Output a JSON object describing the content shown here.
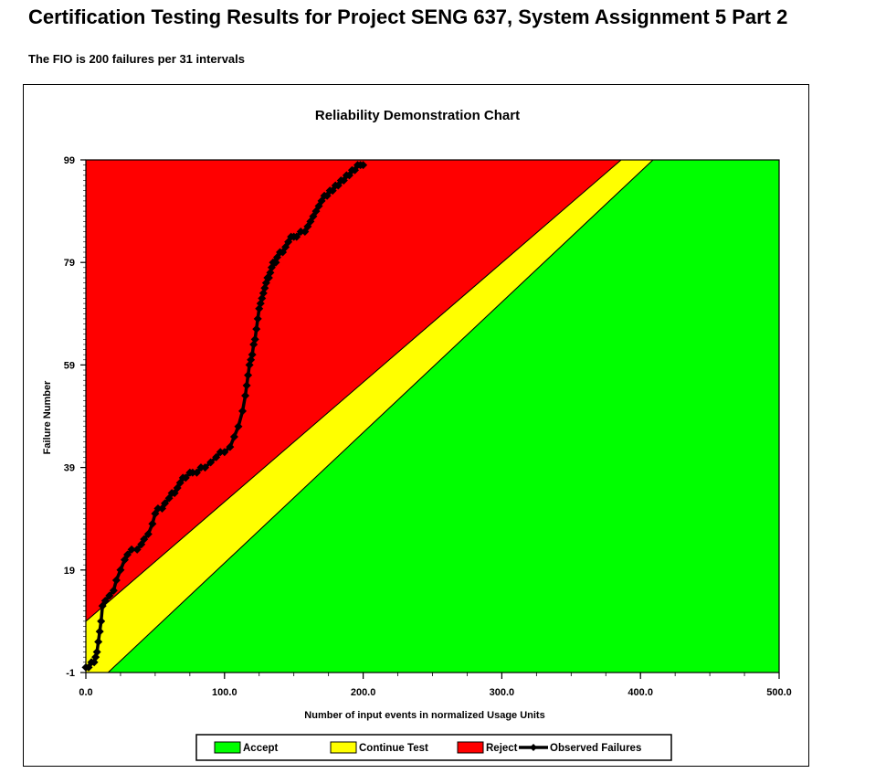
{
  "page": {
    "title": "Certification Testing Results for Project SENG 637, System Assignment 5 Part 2",
    "subtitle": "The FIO is 200 failures per 31 intervals"
  },
  "colors": {
    "accept": "#00ff00",
    "continue": "#ffff00",
    "reject": "#ff0000",
    "observed": "#000000"
  },
  "chart_data": {
    "type": "line",
    "title": "Reliability Demonstration Chart",
    "xlabel": "Number of input events in normalized Usage Units",
    "ylabel": "Failure Number",
    "xlim": [
      0,
      500
    ],
    "ylim": [
      -1,
      99
    ],
    "x_ticks": [
      "0.0",
      "100.0",
      "200.0",
      "300.0",
      "400.0",
      "500.0"
    ],
    "x_tick_values": [
      0,
      100,
      200,
      300,
      400,
      500
    ],
    "y_ticks": [
      "-1",
      "19",
      "39",
      "59",
      "79",
      "99"
    ],
    "y_tick_values": [
      -1,
      19,
      39,
      59,
      79,
      99
    ],
    "legend_position": "bottom",
    "regions": [
      {
        "name": "Accept",
        "boundary": [
          [
            0,
            -1
          ],
          [
            16,
            -1
          ],
          [
            409,
            99
          ],
          [
            500,
            99
          ],
          [
            500,
            -1
          ]
        ]
      },
      {
        "name": "Continue Test",
        "boundary": [
          [
            0,
            -1
          ],
          [
            16,
            -1
          ],
          [
            409,
            99
          ],
          [
            386,
            99
          ],
          [
            0,
            9
          ]
        ]
      },
      {
        "name": "Reject",
        "boundary": [
          [
            0,
            9
          ],
          [
            386,
            99
          ],
          [
            0,
            99
          ]
        ]
      }
    ],
    "series": [
      {
        "name": "Observed Failures",
        "x": [
          0,
          2,
          4,
          6,
          7,
          8,
          9,
          10,
          11,
          12,
          14,
          17,
          20,
          22,
          25,
          28,
          30,
          33,
          37,
          40,
          42,
          45,
          48,
          50,
          52,
          55,
          57,
          60,
          62,
          64,
          66,
          68,
          70,
          72,
          75,
          77,
          80,
          83,
          86,
          90,
          94,
          97,
          100,
          104,
          107,
          110,
          113,
          115,
          116,
          117,
          118,
          119,
          120,
          121,
          122,
          123,
          124,
          125,
          126,
          127,
          128,
          129,
          130,
          131,
          132,
          133,
          134,
          135,
          136,
          137,
          138,
          140,
          142,
          144,
          146,
          148,
          150,
          152,
          155,
          158,
          160,
          162,
          164,
          166,
          168,
          170,
          172,
          174,
          176,
          178,
          180,
          182,
          184,
          186,
          188,
          190,
          192,
          194,
          196,
          198,
          200
        ],
        "y": [
          0,
          0,
          1,
          1,
          2,
          3,
          5,
          7,
          9,
          12,
          13,
          14,
          15,
          17,
          19,
          21,
          22,
          23,
          23,
          24,
          25,
          26,
          28,
          30,
          31,
          31,
          32,
          33,
          34,
          34,
          35,
          36,
          37,
          37,
          38,
          38,
          38,
          39,
          39,
          40,
          41,
          42,
          42,
          43,
          45,
          47,
          50,
          53,
          55,
          57,
          59,
          60,
          61,
          63,
          64,
          66,
          68,
          70,
          71,
          72,
          73,
          74,
          75,
          76,
          76,
          77,
          78,
          79,
          79,
          79,
          80,
          81,
          81,
          82,
          83,
          84,
          84,
          84,
          85,
          85,
          86,
          87,
          88,
          89,
          90,
          91,
          92,
          92,
          93,
          93,
          94,
          94,
          95,
          95,
          96,
          96,
          97,
          97,
          98,
          98,
          98
        ]
      }
    ]
  },
  "legend": {
    "items": [
      {
        "label": "Accept",
        "color": "#00ff00"
      },
      {
        "label": "Continue Test",
        "color": "#ffff00"
      },
      {
        "label": "Reject",
        "color": "#ff0000"
      },
      {
        "label": "Observed Failures",
        "color": "#000000"
      }
    ]
  }
}
